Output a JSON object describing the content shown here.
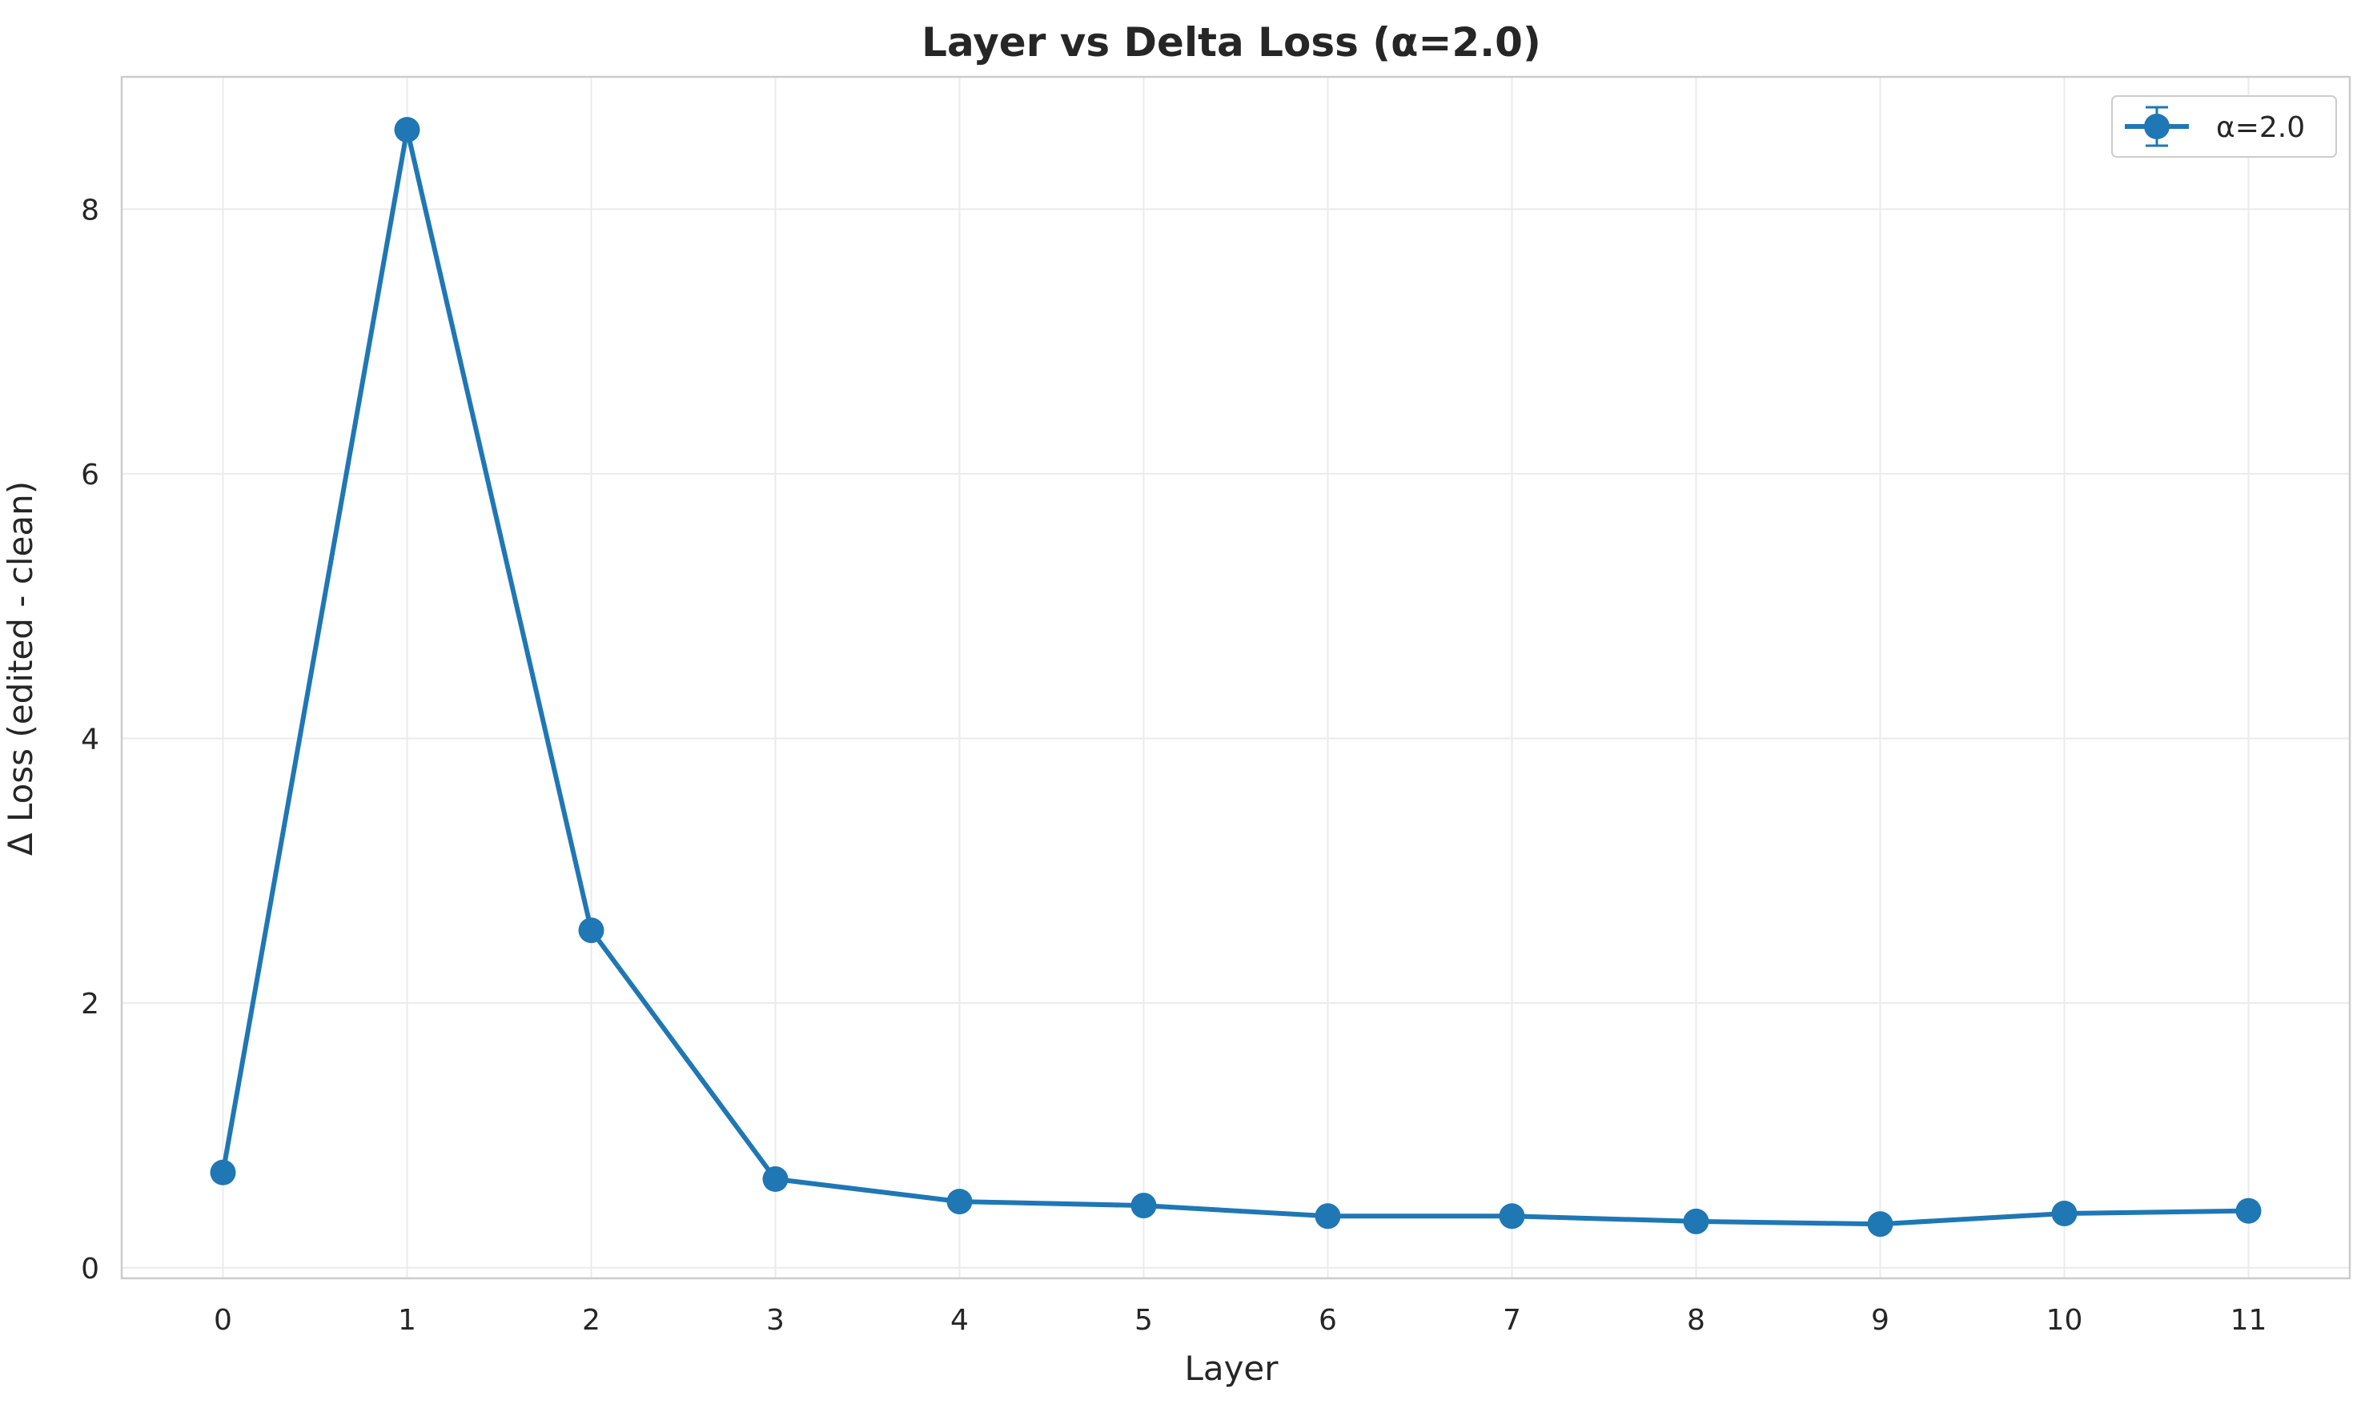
{
  "chart_data": {
    "type": "line",
    "title": "Layer vs Delta Loss (α=2.0)",
    "xlabel": "Layer",
    "ylabel": "Δ Loss (edited - clean)",
    "x": [
      0,
      1,
      2,
      3,
      4,
      5,
      6,
      7,
      8,
      9,
      10,
      11
    ],
    "series": [
      {
        "name": "α=2.0",
        "values": [
          0.72,
          8.6,
          2.55,
          0.67,
          0.5,
          0.47,
          0.39,
          0.39,
          0.35,
          0.33,
          0.41,
          0.43
        ],
        "color": "#1f77b4",
        "marker": "circle",
        "error_bars": true
      }
    ],
    "xlim": [
      -0.55,
      11.55
    ],
    "ylim": [
      -0.08,
      9.0
    ],
    "xticks": [
      0,
      1,
      2,
      3,
      4,
      5,
      6,
      7,
      8,
      9,
      10,
      11
    ],
    "yticks": [
      0,
      2,
      4,
      6,
      8
    ],
    "grid": true,
    "legend_position": "top-right"
  }
}
